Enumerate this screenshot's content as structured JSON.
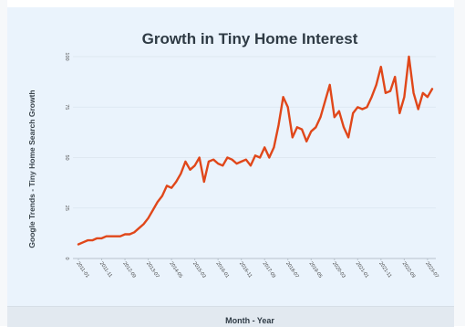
{
  "chart_data": {
    "type": "line",
    "title": "Growth in Tiny Home Interest",
    "xlabel": "Month - Year",
    "ylabel": "Google Trends - Tiny Home Search Growth",
    "ylim": [
      0,
      100
    ],
    "yticks": [
      "0",
      "25",
      "50",
      "75",
      "100"
    ],
    "xticks": [
      "2011-01",
      "2011-11",
      "2012-09",
      "2013-07",
      "2014-05",
      "2015-03",
      "2016-01",
      "2016-11",
      "2017-09",
      "2018-07",
      "2019-05",
      "2020-03",
      "2021-01",
      "2021-11",
      "2022-09",
      "2023-07"
    ],
    "grid": true,
    "legend": "none",
    "line_color": "#e0471a",
    "series": [
      {
        "x": [
          "2011-01",
          "2011-03",
          "2011-05",
          "2011-07",
          "2011-09",
          "2011-11",
          "2012-01",
          "2012-03",
          "2012-05",
          "2012-07",
          "2012-09",
          "2012-11",
          "2013-01",
          "2013-03",
          "2013-05",
          "2013-07",
          "2013-09",
          "2013-11",
          "2014-01",
          "2014-03",
          "2014-05",
          "2014-07",
          "2014-09",
          "2014-11",
          "2015-01",
          "2015-03",
          "2015-05",
          "2015-07",
          "2015-09",
          "2015-11",
          "2016-01",
          "2016-03",
          "2016-05",
          "2016-07",
          "2016-09",
          "2016-11",
          "2017-01",
          "2017-03",
          "2017-05",
          "2017-07",
          "2017-09",
          "2017-11",
          "2018-01",
          "2018-03",
          "2018-05",
          "2018-07",
          "2018-09",
          "2018-11",
          "2019-01",
          "2019-03",
          "2019-05",
          "2019-07",
          "2019-09",
          "2019-11",
          "2020-01",
          "2020-03",
          "2020-05",
          "2020-07",
          "2020-09",
          "2020-11",
          "2021-01",
          "2021-03",
          "2021-05",
          "2021-07",
          "2021-09",
          "2021-11",
          "2022-01",
          "2022-03",
          "2022-05",
          "2022-07",
          "2022-09",
          "2022-11",
          "2023-01",
          "2023-03",
          "2023-05",
          "2023-07",
          "2023-09"
        ],
        "values": [
          7,
          8,
          9,
          9,
          10,
          10,
          11,
          11,
          11,
          11,
          12,
          12,
          13,
          15,
          17,
          20,
          24,
          28,
          31,
          36,
          35,
          38,
          42,
          48,
          44,
          46,
          50,
          38,
          48,
          49,
          47,
          46,
          50,
          49,
          47,
          48,
          49,
          46,
          51,
          50,
          55,
          50,
          55,
          66,
          80,
          75,
          60,
          65,
          64,
          58,
          63,
          65,
          70,
          78,
          86,
          70,
          73,
          65,
          60,
          72,
          75,
          74,
          75,
          80,
          86,
          95,
          82,
          83,
          90,
          72,
          80,
          100,
          82,
          74,
          82,
          80,
          84
        ]
      }
    ]
  }
}
